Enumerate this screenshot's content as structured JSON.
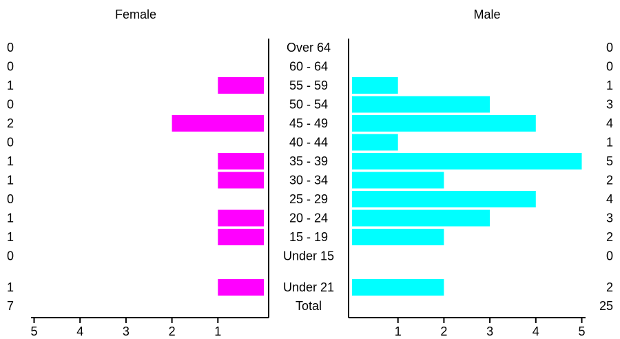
{
  "chart_data": {
    "type": "bar",
    "orientation": "horizontal",
    "subtype": "population-pyramid",
    "categories": [
      "Over 64",
      "60 - 64",
      "55 - 59",
      "50 - 54",
      "45 - 49",
      "40 - 44",
      "35 - 39",
      "30 - 34",
      "25 - 29",
      "20 - 24",
      "15 - 19",
      "Under 15"
    ],
    "extra_categories": [
      "Under 21"
    ],
    "total_label": "Total",
    "series": [
      {
        "name": "Female",
        "values": [
          0,
          0,
          1,
          0,
          2,
          0,
          1,
          1,
          0,
          1,
          1,
          0
        ],
        "extra_values": [
          1
        ],
        "total": 7,
        "color": "#ff00ff"
      },
      {
        "name": "Male",
        "values": [
          0,
          0,
          1,
          3,
          4,
          1,
          5,
          2,
          4,
          3,
          2,
          0
        ],
        "extra_values": [
          2
        ],
        "total": 25,
        "color": "#00ffff"
      }
    ],
    "female_axis_ticks": [
      5,
      4,
      3,
      2,
      1
    ],
    "male_axis_ticks": [
      1,
      2,
      3,
      4,
      5
    ],
    "xlim": [
      0,
      5
    ],
    "grid": false,
    "legend": "none"
  }
}
